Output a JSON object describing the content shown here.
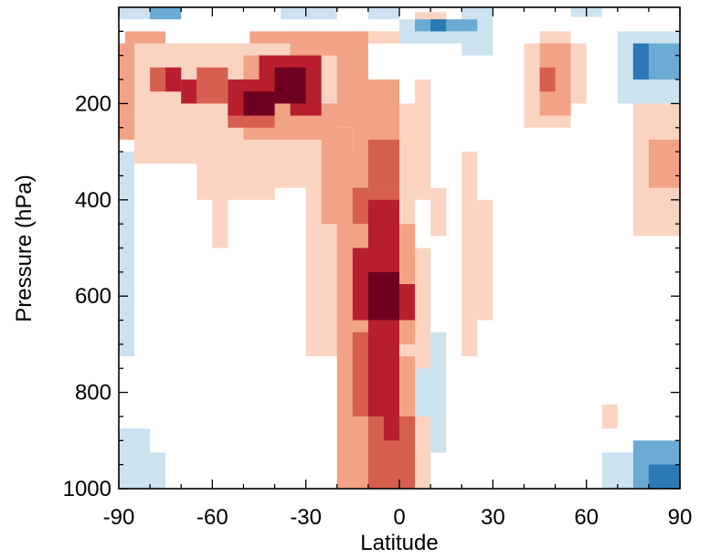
{
  "chart_data": {
    "type": "heatmap",
    "title": "",
    "xlabel": "Latitude",
    "ylabel": "Pressure (hPa)",
    "xlim": [
      -90,
      90
    ],
    "ylim": [
      1000,
      0
    ],
    "y_reversed": true,
    "x_ticks": [
      -90,
      -60,
      -30,
      0,
      30,
      60,
      90
    ],
    "x_tick_labels": [
      "-90",
      "-60",
      "-30",
      "0",
      "30",
      "60",
      "90"
    ],
    "y_ticks": [
      200,
      400,
      600,
      800,
      1000
    ],
    "y_tick_labels": [
      "200",
      "400",
      "600",
      "800",
      "1000"
    ],
    "cell_width_deg": 4.3,
    "cell_height_hPa": 25,
    "color_levels": {
      "-3": "#2b79b5",
      "-2": "#6aaad3",
      "-1": "#cce2ef",
      "1": "#fbd4c1",
      "2": "#f2a385",
      "3": "#d65f4f",
      "4": "#b81f2e",
      "5": "#6d0020"
    },
    "cells": [
      {
        "x": [
          -90,
          -75
        ],
        "p": [
          0,
          25
        ],
        "level": -1
      },
      {
        "x": [
          -80,
          -70
        ],
        "p": [
          0,
          25
        ],
        "level": -2
      },
      {
        "x": [
          -38,
          -20
        ],
        "p": [
          0,
          25
        ],
        "level": -1
      },
      {
        "x": [
          -10,
          0
        ],
        "p": [
          0,
          25
        ],
        "level": -1
      },
      {
        "x": [
          5,
          15
        ],
        "p": [
          10,
          35
        ],
        "level": 1
      },
      {
        "x": [
          20,
          30
        ],
        "p": [
          0,
          25
        ],
        "level": -1
      },
      {
        "x": [
          55,
          65
        ],
        "p": [
          0,
          20
        ],
        "level": -1
      },
      {
        "x": [
          -88,
          -75
        ],
        "p": [
          50,
          75
        ],
        "level": 2
      },
      {
        "x": [
          -70,
          -50
        ],
        "p": [
          75,
          100
        ],
        "level": 2
      },
      {
        "x": [
          -48,
          -25
        ],
        "p": [
          50,
          75
        ],
        "level": 2
      },
      {
        "x": [
          -10,
          0
        ],
        "p": [
          50,
          75
        ],
        "level": 1
      },
      {
        "x": [
          15,
          25
        ],
        "p": [
          25,
          50
        ],
        "level": 1
      },
      {
        "x": [
          -20,
          -15
        ],
        "p": [
          75,
          100
        ],
        "level": 1
      },
      {
        "x": [
          -15,
          -10
        ],
        "p": [
          50,
          75
        ],
        "level": 1
      },
      {
        "x": [
          -90,
          -35
        ],
        "p": [
          75,
          225
        ],
        "level": 2
      },
      {
        "x": [
          -90,
          -50
        ],
        "p": [
          225,
          275
        ],
        "level": 2
      },
      {
        "x": [
          -85,
          -25
        ],
        "p": [
          75,
          325
        ],
        "level": 1
      },
      {
        "x": [
          -65,
          -40
        ],
        "p": [
          275,
          400
        ],
        "level": 1
      },
      {
        "x": [
          -60,
          -55
        ],
        "p": [
          400,
          500
        ],
        "level": 1
      },
      {
        "x": [
          -40,
          -25
        ],
        "p": [
          275,
          375
        ],
        "level": 1
      },
      {
        "x": [
          -30,
          -5
        ],
        "p": [
          300,
          575
        ],
        "level": 1
      },
      {
        "x": [
          -30,
          -15
        ],
        "p": [
          575,
          725
        ],
        "level": 1
      },
      {
        "x": [
          -20,
          -15
        ],
        "p": [
          725,
          850
        ],
        "level": 1
      },
      {
        "x": [
          -20,
          -10
        ],
        "p": [
          850,
          1000
        ],
        "level": 1
      },
      {
        "x": [
          -10,
          5
        ],
        "p": [
          200,
          525
        ],
        "level": 1
      },
      {
        "x": [
          5,
          10
        ],
        "p": [
          150,
          400
        ],
        "level": 1
      },
      {
        "x": [
          0,
          10
        ],
        "p": [
          500,
          1000
        ],
        "level": 1
      },
      {
        "x": [
          10,
          15
        ],
        "p": [
          375,
          475
        ],
        "level": 1
      },
      {
        "x": [
          20,
          25
        ],
        "p": [
          300,
          725
        ],
        "level": 1
      },
      {
        "x": [
          25,
          30
        ],
        "p": [
          400,
          650
        ],
        "level": 1
      },
      {
        "x": [
          65,
          70
        ],
        "p": [
          825,
          875
        ],
        "level": 1
      },
      {
        "x": [
          -50,
          -20
        ],
        "p": [
          100,
          275
        ],
        "level": 2
      },
      {
        "x": [
          -35,
          -10
        ],
        "p": [
          50,
          250
        ],
        "level": 2
      },
      {
        "x": [
          -25,
          -15
        ],
        "p": [
          250,
          450
        ],
        "level": 2
      },
      {
        "x": [
          -20,
          -10
        ],
        "p": [
          450,
          725
        ],
        "level": 2
      },
      {
        "x": [
          -15,
          0
        ],
        "p": [
          150,
          450
        ],
        "level": 2
      },
      {
        "x": [
          -20,
          5
        ],
        "p": [
          725,
          1000
        ],
        "level": 2
      },
      {
        "x": [
          0,
          5
        ],
        "p": [
          450,
          700
        ],
        "level": 2
      },
      {
        "x": [
          -80,
          -70
        ],
        "p": [
          125,
          175
        ],
        "level": 3
      },
      {
        "x": [
          -65,
          -55
        ],
        "p": [
          125,
          200
        ],
        "level": 3
      },
      {
        "x": [
          -55,
          -40
        ],
        "p": [
          150,
          250
        ],
        "level": 3
      },
      {
        "x": [
          -45,
          -25
        ],
        "p": [
          100,
          175
        ],
        "level": 3
      },
      {
        "x": [
          -10,
          0
        ],
        "p": [
          275,
          375
        ],
        "level": 3
      },
      {
        "x": [
          -15,
          0
        ],
        "p": [
          375,
          450
        ],
        "level": 3
      },
      {
        "x": [
          -15,
          0
        ],
        "p": [
          675,
          850
        ],
        "level": 3
      },
      {
        "x": [
          -10,
          5
        ],
        "p": [
          850,
          1000
        ],
        "level": 3
      },
      {
        "x": [
          -75,
          -70
        ],
        "p": [
          125,
          175
        ],
        "level": 4
      },
      {
        "x": [
          -70,
          -65
        ],
        "p": [
          150,
          200
        ],
        "level": 4
      },
      {
        "x": [
          -55,
          -40
        ],
        "p": [
          150,
          225
        ],
        "level": 4
      },
      {
        "x": [
          -45,
          -25
        ],
        "p": [
          100,
          175
        ],
        "level": 4
      },
      {
        "x": [
          -35,
          -25
        ],
        "p": [
          125,
          225
        ],
        "level": 4
      },
      {
        "x": [
          -10,
          0
        ],
        "p": [
          400,
          500
        ],
        "level": 4
      },
      {
        "x": [
          -15,
          0
        ],
        "p": [
          500,
          575
        ],
        "level": 4
      },
      {
        "x": [
          -15,
          5
        ],
        "p": [
          575,
          650
        ],
        "level": 4
      },
      {
        "x": [
          -10,
          0
        ],
        "p": [
          650,
          850
        ],
        "level": 4
      },
      {
        "x": [
          -5,
          0
        ],
        "p": [
          850,
          900
        ],
        "level": 4
      },
      {
        "x": [
          -50,
          -40
        ],
        "p": [
          175,
          225
        ],
        "level": 5
      },
      {
        "x": [
          -40,
          -30
        ],
        "p": [
          125,
          200
        ],
        "level": 5
      },
      {
        "x": [
          -10,
          -5
        ],
        "p": [
          550,
          650
        ],
        "level": 5
      },
      {
        "x": [
          -5,
          0
        ],
        "p": [
          550,
          650
        ],
        "level": 5
      },
      {
        "x": [
          -25,
          -20
        ],
        "p": [
          100,
          200
        ],
        "level": 1
      },
      {
        "x": [
          40,
          45
        ],
        "p": [
          75,
          250
        ],
        "level": 1
      },
      {
        "x": [
          45,
          55
        ],
        "p": [
          50,
          250
        ],
        "level": 1
      },
      {
        "x": [
          55,
          60
        ],
        "p": [
          75,
          200
        ],
        "level": 1
      },
      {
        "x": [
          45,
          55
        ],
        "p": [
          75,
          225
        ],
        "level": 2
      },
      {
        "x": [
          45,
          50
        ],
        "p": [
          125,
          175
        ],
        "level": 3
      },
      {
        "x": [
          75,
          90
        ],
        "p": [
          200,
          475
        ],
        "level": 1
      },
      {
        "x": [
          80,
          90
        ],
        "p": [
          275,
          375
        ],
        "level": 2
      },
      {
        "x": [
          0,
          30
        ],
        "p": [
          25,
          75
        ],
        "level": -1
      },
      {
        "x": [
          5,
          25
        ],
        "p": [
          25,
          50
        ],
        "level": -2
      },
      {
        "x": [
          10,
          15
        ],
        "p": [
          25,
          50
        ],
        "level": -3
      },
      {
        "x": [
          20,
          30
        ],
        "p": [
          50,
          100
        ],
        "level": -1
      },
      {
        "x": [
          70,
          90
        ],
        "p": [
          50,
          200
        ],
        "level": -1
      },
      {
        "x": [
          75,
          90
        ],
        "p": [
          75,
          150
        ],
        "level": -2
      },
      {
        "x": [
          75,
          80
        ],
        "p": [
          75,
          150
        ],
        "level": -3
      },
      {
        "x": [
          -90,
          -85
        ],
        "p": [
          300,
          725
        ],
        "level": -1
      },
      {
        "x": [
          -90,
          -80
        ],
        "p": [
          875,
          1000
        ],
        "level": -1
      },
      {
        "x": [
          -85,
          -75
        ],
        "p": [
          925,
          1000
        ],
        "level": -1
      },
      {
        "x": [
          5,
          10
        ],
        "p": [
          750,
          850
        ],
        "level": -1
      },
      {
        "x": [
          10,
          15
        ],
        "p": [
          675,
          925
        ],
        "level": -1
      },
      {
        "x": [
          65,
          90
        ],
        "p": [
          925,
          1000
        ],
        "level": -1
      },
      {
        "x": [
          75,
          90
        ],
        "p": [
          900,
          1000
        ],
        "level": -2
      },
      {
        "x": [
          80,
          90
        ],
        "p": [
          950,
          1000
        ],
        "level": -3
      }
    ]
  }
}
